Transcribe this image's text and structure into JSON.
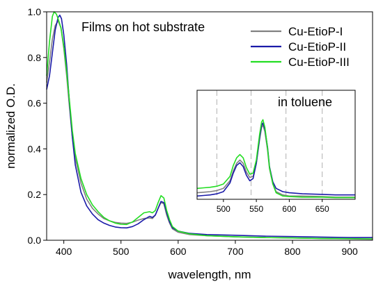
{
  "chart_data": {
    "type": "line",
    "title": "",
    "xlabel": "wavelength, nm",
    "ylabel": "normalized O.D.",
    "xlim": [
      370,
      940
    ],
    "ylim": [
      0,
      1.0
    ],
    "xticks": [
      400,
      500,
      600,
      700,
      800,
      900
    ],
    "yticks": [
      0.0,
      0.2,
      0.4,
      0.6,
      0.8,
      1.0
    ],
    "annotation": "Films on hot substrate",
    "legend_position": "top-right",
    "series": [
      {
        "name": "Cu-EtioP-I",
        "color": "#808080",
        "points": [
          [
            370,
            0.69
          ],
          [
            375,
            0.78
          ],
          [
            380,
            0.88
          ],
          [
            385,
            0.94
          ],
          [
            390,
            0.96
          ],
          [
            395,
            0.93
          ],
          [
            400,
            0.84
          ],
          [
            405,
            0.72
          ],
          [
            410,
            0.58
          ],
          [
            415,
            0.45
          ],
          [
            420,
            0.36
          ],
          [
            430,
            0.25
          ],
          [
            440,
            0.18
          ],
          [
            450,
            0.14
          ],
          [
            460,
            0.115
          ],
          [
            470,
            0.095
          ],
          [
            480,
            0.085
          ],
          [
            490,
            0.078
          ],
          [
            500,
            0.075
          ],
          [
            510,
            0.074
          ],
          [
            520,
            0.079
          ],
          [
            530,
            0.088
          ],
          [
            540,
            0.095
          ],
          [
            550,
            0.098
          ],
          [
            555,
            0.095
          ],
          [
            560,
            0.11
          ],
          [
            565,
            0.14
          ],
          [
            570,
            0.165
          ],
          [
            575,
            0.16
          ],
          [
            580,
            0.11
          ],
          [
            585,
            0.075
          ],
          [
            590,
            0.05
          ],
          [
            600,
            0.035
          ],
          [
            620,
            0.025
          ],
          [
            650,
            0.02
          ],
          [
            700,
            0.015
          ],
          [
            750,
            0.012
          ],
          [
            800,
            0.01
          ],
          [
            850,
            0.008
          ],
          [
            900,
            0.006
          ],
          [
            940,
            0.005
          ]
        ]
      },
      {
        "name": "Cu-EtioP-II",
        "color": "#1a1aa8",
        "points": [
          [
            370,
            0.66
          ],
          [
            375,
            0.72
          ],
          [
            380,
            0.82
          ],
          [
            385,
            0.92
          ],
          [
            390,
            0.975
          ],
          [
            393,
            0.985
          ],
          [
            396,
            0.97
          ],
          [
            400,
            0.9
          ],
          [
            405,
            0.77
          ],
          [
            410,
            0.6
          ],
          [
            415,
            0.45
          ],
          [
            420,
            0.33
          ],
          [
            430,
            0.21
          ],
          [
            440,
            0.15
          ],
          [
            450,
            0.115
          ],
          [
            460,
            0.09
          ],
          [
            470,
            0.075
          ],
          [
            480,
            0.065
          ],
          [
            490,
            0.058
          ],
          [
            500,
            0.055
          ],
          [
            510,
            0.054
          ],
          [
            520,
            0.06
          ],
          [
            530,
            0.072
          ],
          [
            540,
            0.09
          ],
          [
            550,
            0.105
          ],
          [
            555,
            0.1
          ],
          [
            560,
            0.11
          ],
          [
            565,
            0.14
          ],
          [
            570,
            0.17
          ],
          [
            575,
            0.165
          ],
          [
            580,
            0.12
          ],
          [
            585,
            0.08
          ],
          [
            590,
            0.055
          ],
          [
            600,
            0.04
          ],
          [
            620,
            0.03
          ],
          [
            650,
            0.025
          ],
          [
            700,
            0.022
          ],
          [
            750,
            0.018
          ],
          [
            800,
            0.016
          ],
          [
            850,
            0.014
          ],
          [
            900,
            0.012
          ],
          [
            940,
            0.012
          ]
        ]
      },
      {
        "name": "Cu-EtioP-III",
        "color": "#22dd22",
        "points": [
          [
            370,
            0.72
          ],
          [
            375,
            0.87
          ],
          [
            380,
            0.98
          ],
          [
            383,
            1.0
          ],
          [
            387,
            0.99
          ],
          [
            390,
            0.97
          ],
          [
            395,
            0.93
          ],
          [
            400,
            0.85
          ],
          [
            405,
            0.74
          ],
          [
            410,
            0.61
          ],
          [
            415,
            0.48
          ],
          [
            420,
            0.38
          ],
          [
            430,
            0.27
          ],
          [
            440,
            0.2
          ],
          [
            450,
            0.155
          ],
          [
            460,
            0.125
          ],
          [
            470,
            0.1
          ],
          [
            480,
            0.085
          ],
          [
            490,
            0.075
          ],
          [
            500,
            0.07
          ],
          [
            510,
            0.069
          ],
          [
            520,
            0.08
          ],
          [
            530,
            0.1
          ],
          [
            540,
            0.12
          ],
          [
            550,
            0.125
          ],
          [
            555,
            0.12
          ],
          [
            560,
            0.13
          ],
          [
            565,
            0.165
          ],
          [
            570,
            0.195
          ],
          [
            575,
            0.185
          ],
          [
            580,
            0.13
          ],
          [
            585,
            0.09
          ],
          [
            590,
            0.06
          ],
          [
            600,
            0.04
          ],
          [
            620,
            0.028
          ],
          [
            650,
            0.02
          ],
          [
            700,
            0.015
          ],
          [
            750,
            0.012
          ],
          [
            800,
            0.01
          ],
          [
            850,
            0.008
          ],
          [
            900,
            0.007
          ],
          [
            940,
            0.006
          ]
        ]
      }
    ],
    "inset": {
      "label": "in toluene",
      "xlim": [
        460,
        700
      ],
      "ylim": [
        0,
        1.0
      ],
      "xticks": [
        500,
        550,
        600,
        650
      ],
      "dashed_gridlines_x": [
        490,
        542,
        595,
        650
      ],
      "series": [
        {
          "name": "Cu-EtioP-I",
          "color": "#808080",
          "points": [
            [
              460,
              0.06
            ],
            [
              470,
              0.065
            ],
            [
              480,
              0.07
            ],
            [
              490,
              0.08
            ],
            [
              500,
              0.1
            ],
            [
              510,
              0.17
            ],
            [
              515,
              0.26
            ],
            [
              520,
              0.33
            ],
            [
              525,
              0.36
            ],
            [
              530,
              0.33
            ],
            [
              535,
              0.25
            ],
            [
              540,
              0.2
            ],
            [
              545,
              0.21
            ],
            [
              550,
              0.33
            ],
            [
              555,
              0.55
            ],
            [
              558,
              0.66
            ],
            [
              560,
              0.68
            ],
            [
              563,
              0.62
            ],
            [
              567,
              0.45
            ],
            [
              570,
              0.28
            ],
            [
              575,
              0.14
            ],
            [
              580,
              0.07
            ],
            [
              590,
              0.04
            ],
            [
              600,
              0.03
            ],
            [
              620,
              0.03
            ],
            [
              650,
              0.025
            ],
            [
              670,
              0.02
            ],
            [
              700,
              0.02
            ]
          ]
        },
        {
          "name": "Cu-EtioP-II",
          "color": "#1a1aa8",
          "points": [
            [
              460,
              0.03
            ],
            [
              470,
              0.035
            ],
            [
              480,
              0.04
            ],
            [
              490,
              0.05
            ],
            [
              500,
              0.07
            ],
            [
              510,
              0.15
            ],
            [
              515,
              0.24
            ],
            [
              520,
              0.31
            ],
            [
              525,
              0.335
            ],
            [
              530,
              0.3
            ],
            [
              535,
              0.22
            ],
            [
              540,
              0.17
            ],
            [
              545,
              0.19
            ],
            [
              550,
              0.33
            ],
            [
              555,
              0.57
            ],
            [
              558,
              0.68
            ],
            [
              560,
              0.7
            ],
            [
              563,
              0.64
            ],
            [
              567,
              0.48
            ],
            [
              570,
              0.3
            ],
            [
              575,
              0.16
            ],
            [
              580,
              0.1
            ],
            [
              590,
              0.07
            ],
            [
              600,
              0.06
            ],
            [
              620,
              0.05
            ],
            [
              650,
              0.045
            ],
            [
              670,
              0.04
            ],
            [
              700,
              0.04
            ]
          ]
        },
        {
          "name": "Cu-EtioP-III",
          "color": "#22dd22",
          "points": [
            [
              460,
              0.1
            ],
            [
              470,
              0.105
            ],
            [
              480,
              0.11
            ],
            [
              490,
              0.12
            ],
            [
              500,
              0.14
            ],
            [
              510,
              0.21
            ],
            [
              515,
              0.31
            ],
            [
              520,
              0.38
            ],
            [
              525,
              0.41
            ],
            [
              530,
              0.38
            ],
            [
              535,
              0.29
            ],
            [
              540,
              0.23
            ],
            [
              545,
              0.24
            ],
            [
              550,
              0.36
            ],
            [
              555,
              0.6
            ],
            [
              558,
              0.71
            ],
            [
              560,
              0.73
            ],
            [
              563,
              0.66
            ],
            [
              567,
              0.47
            ],
            [
              570,
              0.29
            ],
            [
              575,
              0.14
            ],
            [
              580,
              0.06
            ],
            [
              590,
              0.03
            ],
            [
              600,
              0.025
            ],
            [
              620,
              0.02
            ],
            [
              650,
              0.02
            ],
            [
              670,
              0.015
            ],
            [
              700,
              0.015
            ]
          ]
        }
      ]
    }
  }
}
